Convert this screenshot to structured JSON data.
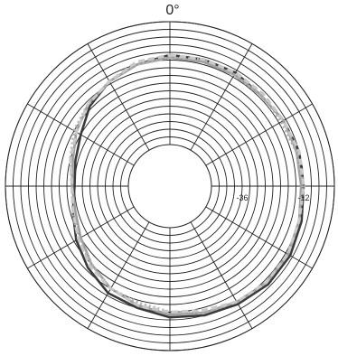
{
  "chart_data": {
    "type": "line",
    "subtype": "polar",
    "title": "0°",
    "angle_zero": "top",
    "radial_range": [
      -48,
      0
    ],
    "radial_rings_db": [
      -45,
      -42,
      -39,
      -36,
      -33,
      -30,
      -27,
      -24,
      -21,
      -18,
      -15,
      -12,
      -9,
      -6,
      -3,
      0
    ],
    "radial_tick_labels": [
      {
        "value": -36,
        "text": "-36"
      },
      {
        "value": -12,
        "text": "-12"
      }
    ],
    "angular_spokes_deg": [
      0,
      30,
      60,
      90,
      120,
      150,
      180,
      210,
      240,
      270,
      300,
      330
    ],
    "grid": true,
    "legend": "none",
    "angles_deg": [
      0,
      15,
      30,
      45,
      60,
      75,
      90,
      105,
      120,
      135,
      150,
      165,
      180,
      195,
      210,
      225,
      240,
      255,
      270,
      285,
      300,
      315,
      330,
      345
    ],
    "series": [
      {
        "color": "#3a3a3a",
        "style": "solid",
        "values": [
          -13,
          -13,
          -13,
          -14,
          -13,
          -12,
          -12,
          -11,
          -10,
          -10,
          -11,
          -12,
          -13,
          -15,
          -16,
          -19,
          -22,
          -25,
          -27,
          -26,
          -24,
          -20,
          -17,
          -15
        ]
      },
      {
        "color": "#9e9e9e",
        "style": "solid",
        "values": [
          -14,
          -14,
          -14,
          -14,
          -13,
          -13,
          -13,
          -12,
          -11,
          -11,
          -12,
          -13,
          -14,
          -16,
          -18,
          -21,
          -24,
          -26,
          -26,
          -25,
          -22,
          -19,
          -17,
          -15
        ]
      },
      {
        "color": "#b0b0b0",
        "style": "dotted",
        "values": [
          -14,
          -13,
          -14,
          -14,
          -14,
          -13,
          -12,
          -12,
          -11,
          -11,
          -12,
          -13,
          -15,
          -17,
          -18,
          -21,
          -23,
          -25,
          -26,
          -24,
          -21,
          -19,
          -17,
          -15
        ]
      },
      {
        "color": "#c8c8c8",
        "style": "dashed",
        "values": [
          -13,
          -13,
          -13,
          -13,
          -13,
          -12,
          -12,
          -12,
          -11,
          -11,
          -12,
          -14,
          -15,
          -16,
          -18,
          -20,
          -23,
          -25,
          -26,
          -24,
          -22,
          -19,
          -17,
          -14
        ]
      }
    ]
  }
}
